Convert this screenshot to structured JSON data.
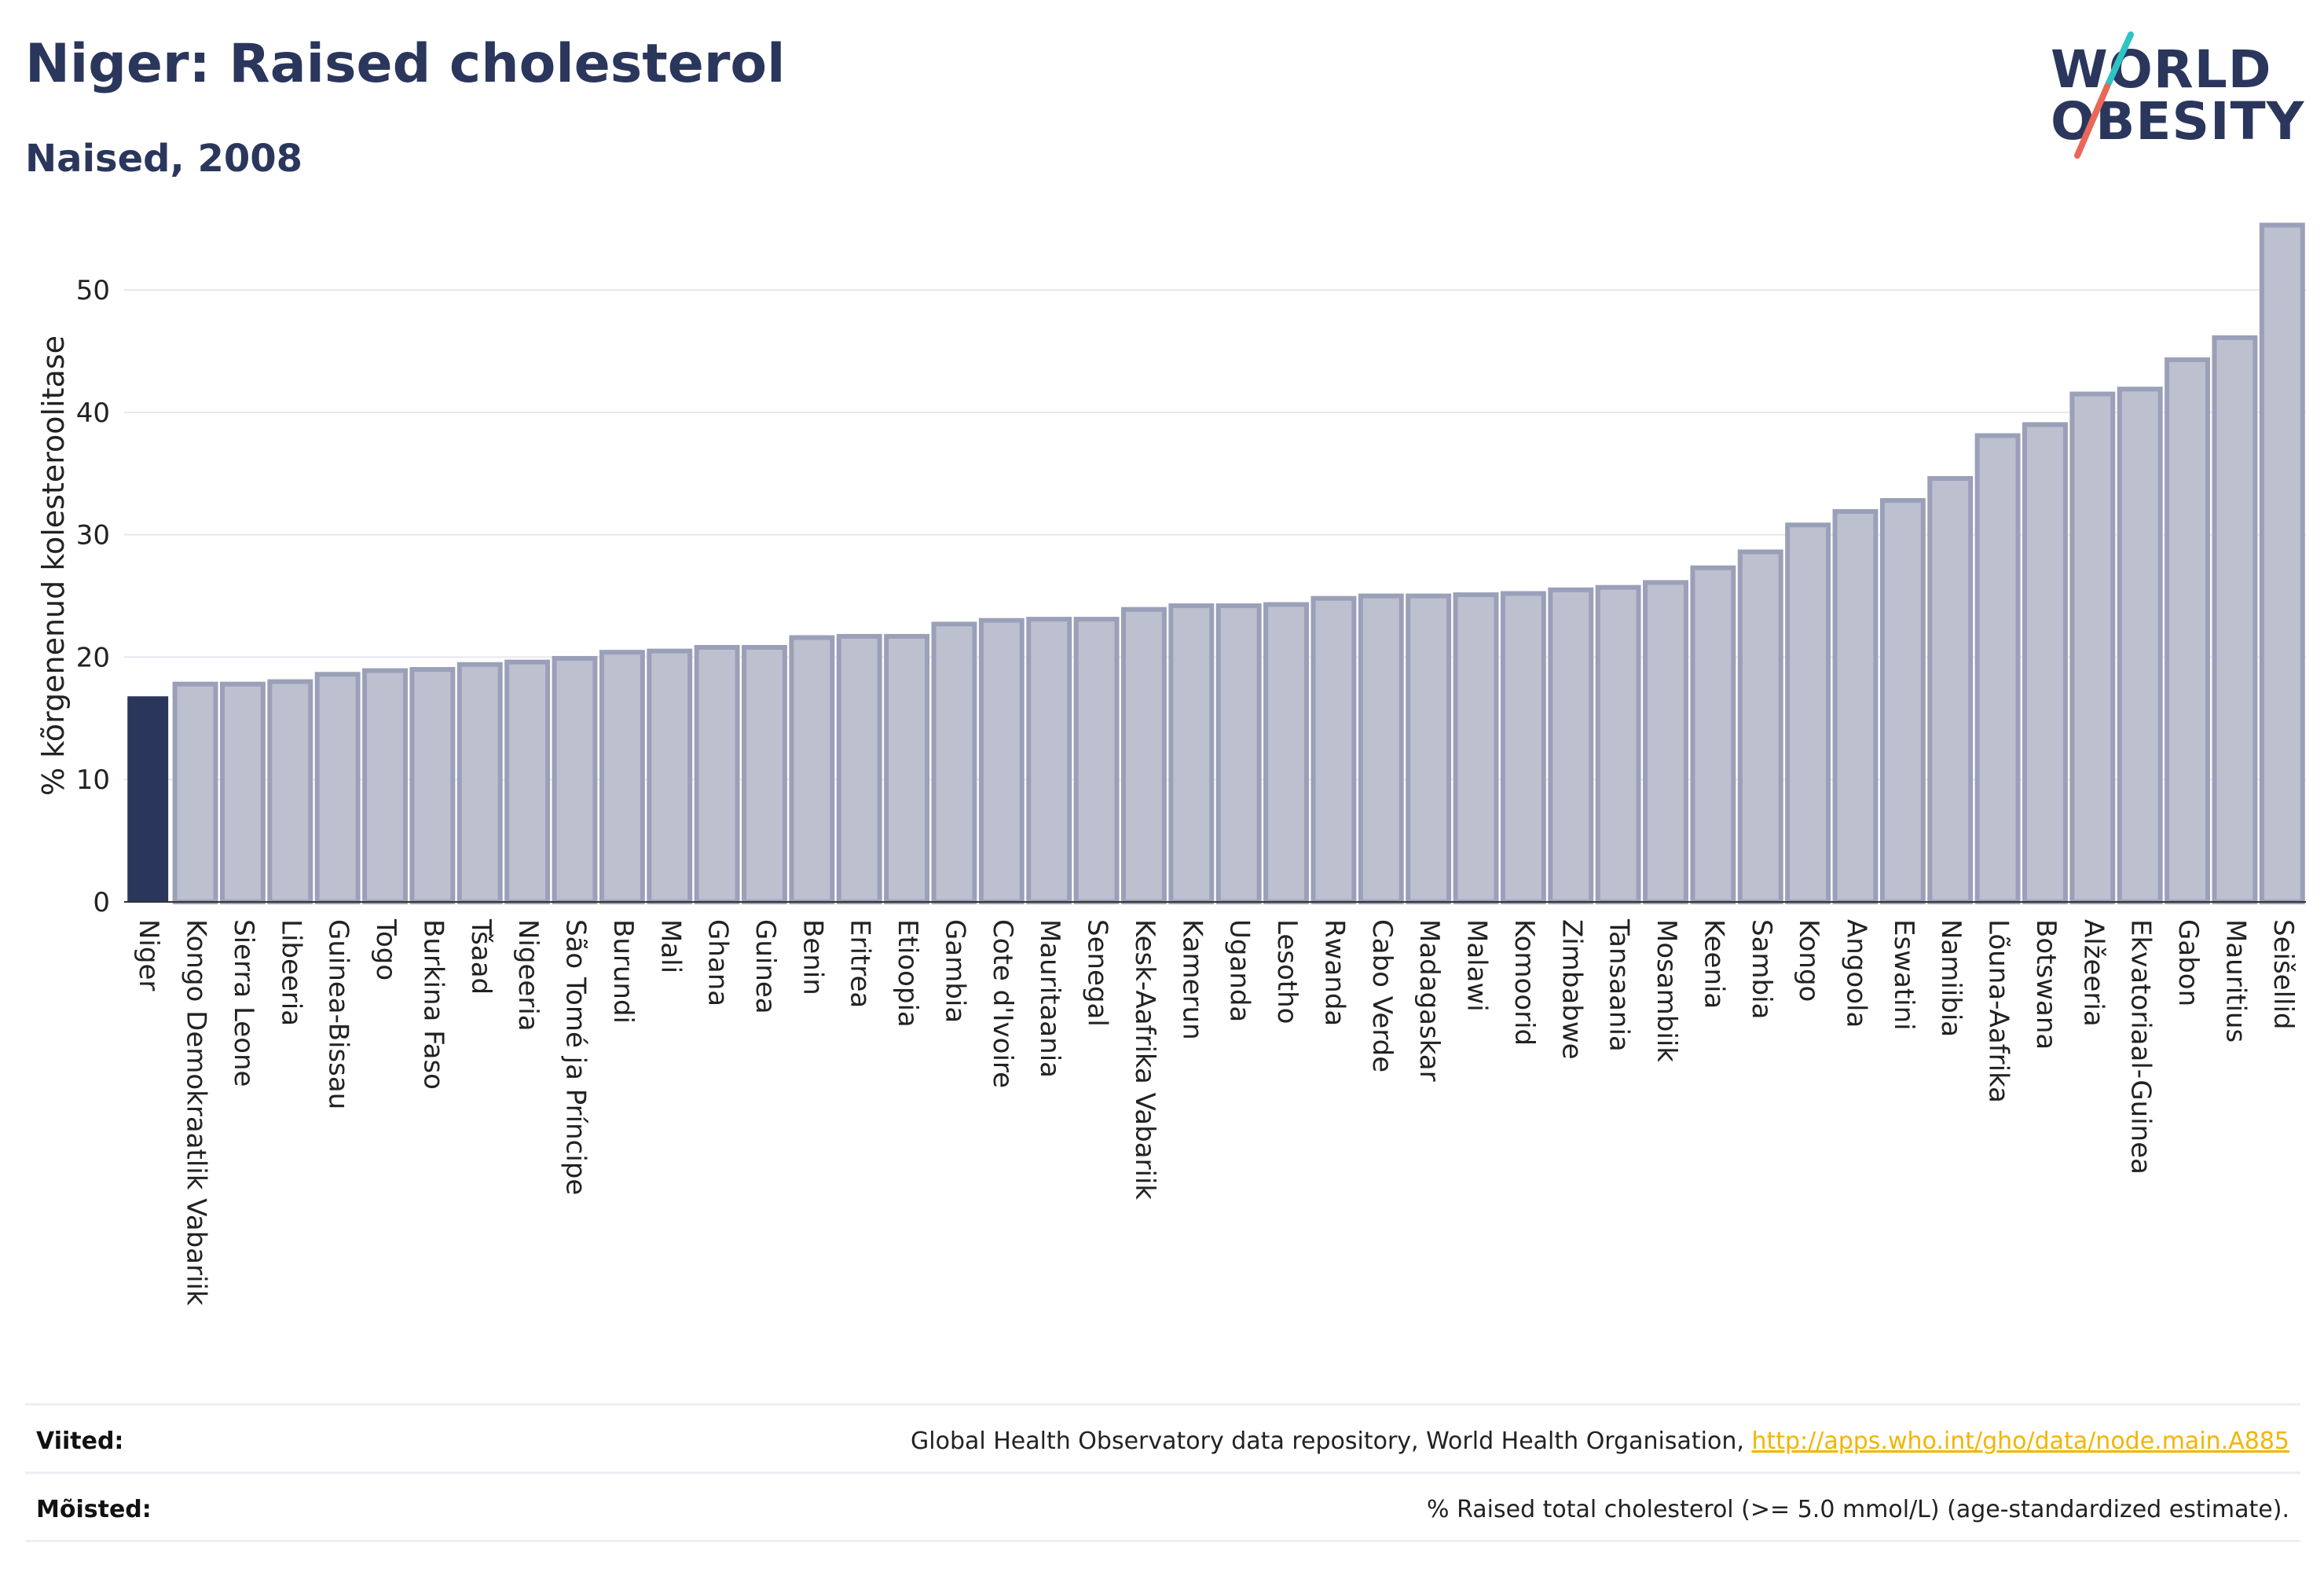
{
  "header": {
    "title": "Niger: Raised cholesterol",
    "subtitle": "Naised, 2008"
  },
  "logo": {
    "line1": "WORLD",
    "line2": "OBESITY",
    "accent_colors": [
      "#2ec4c4",
      "#e8685a"
    ]
  },
  "colors": {
    "highlight": "#2b365c",
    "bar_fill": "#bcc0cf",
    "bar_stroke": "#9aa0b8",
    "grid": "#e6e8ef",
    "link": "#f4b400"
  },
  "chart_data": {
    "type": "bar",
    "title": "Niger: Raised cholesterol",
    "subtitle": "Naised, 2008",
    "ylabel": "% kõrgenenud kolesteroolitase",
    "xlabel": "",
    "ylim": [
      0,
      57
    ],
    "yticks": [
      0,
      10,
      20,
      30,
      40,
      50
    ],
    "grid": true,
    "highlight_category": "Niger",
    "categories": [
      "Niger",
      "Kongo Demokraatlik Vabariik",
      "Sierra Leone",
      "Libeeria",
      "Guinea-Bissau",
      "Togo",
      "Burkina Faso",
      "Tšaad",
      "Nigeeria",
      "São Tomé ja Príncipe",
      "Burundi",
      "Mali",
      "Ghana",
      "Guinea",
      "Benin",
      "Eritrea",
      "Etioopia",
      "Gambia",
      "Cote d'Ivoire",
      "Mauritaania",
      "Senegal",
      "Kesk-Aafrika Vabariik",
      "Kamerun",
      "Uganda",
      "Lesotho",
      "Rwanda",
      "Cabo Verde",
      "Madagaskar",
      "Malawi",
      "Komoorid",
      "Zimbabwe",
      "Tansaania",
      "Mosambiik",
      "Keenia",
      "Sambia",
      "Kongo",
      "Angoola",
      "Eswatini",
      "Namiibia",
      "Lõuna-Aafrika",
      "Botswana",
      "Alžeeria",
      "Ekvatoriaal-Guinea",
      "Gabon",
      "Mauritius",
      "Seišellid"
    ],
    "values": [
      16.8,
      17.8,
      17.8,
      18.0,
      18.6,
      18.9,
      19.0,
      19.4,
      19.6,
      19.9,
      20.4,
      20.5,
      20.8,
      20.8,
      21.6,
      21.7,
      21.7,
      22.7,
      23.0,
      23.1,
      23.1,
      23.9,
      24.2,
      24.2,
      24.3,
      24.8,
      25.0,
      25.0,
      25.1,
      25.2,
      25.5,
      25.7,
      26.1,
      27.3,
      28.6,
      30.8,
      31.9,
      32.8,
      34.6,
      38.1,
      39.0,
      41.5,
      41.9,
      44.3,
      46.1,
      55.3
    ]
  },
  "footer": {
    "sources_label": "Viited:",
    "sources_text": "Global Health Observatory data repository, World Health Organisation, ",
    "sources_link": "http://apps.who.int/gho/data/node.main.A885",
    "definitions_label": "Mõisted:",
    "definitions_text": "% Raised total cholesterol (>= 5.0 mmol/L) (age-standardized estimate)."
  }
}
